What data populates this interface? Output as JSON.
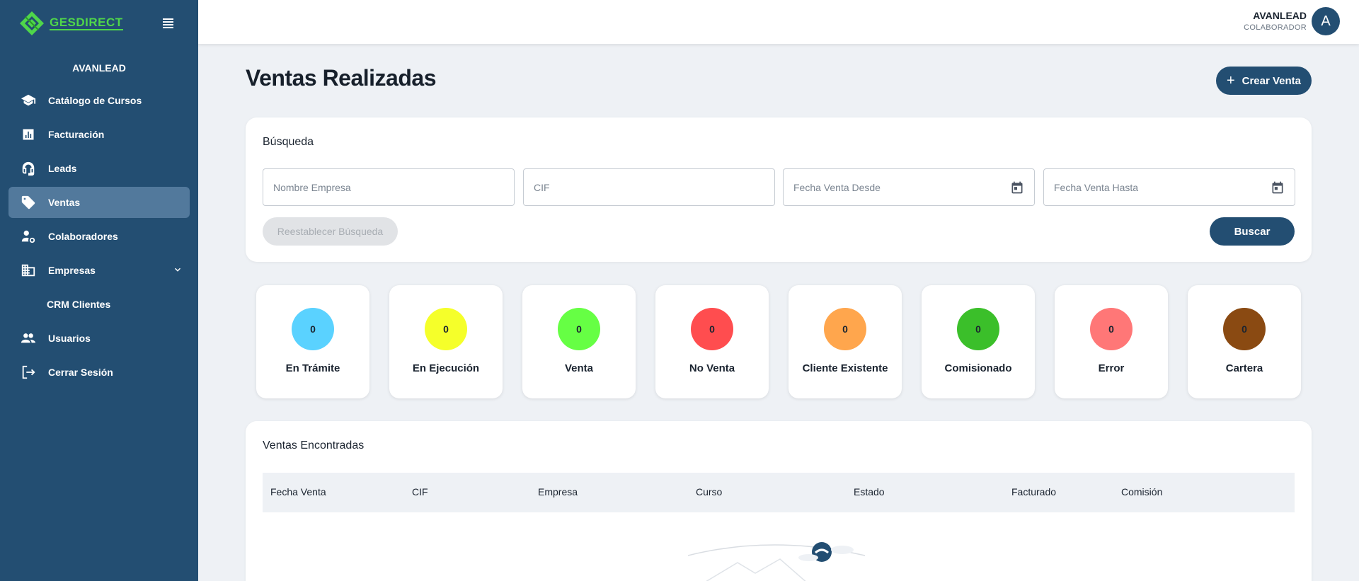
{
  "brand": {
    "name": "GESDIRECT"
  },
  "sidebar": {
    "org_name": "AVANLEAD",
    "items": [
      {
        "label": "Catálogo de Cursos",
        "icon": "graduation-cap-icon"
      },
      {
        "label": "Facturación",
        "icon": "bar-chart-icon"
      },
      {
        "label": "Leads",
        "icon": "headset-icon"
      },
      {
        "label": "Ventas",
        "icon": "tag-icon",
        "active": true
      },
      {
        "label": "Colaboradores",
        "icon": "user-gear-icon"
      },
      {
        "label": "Empresas",
        "icon": "building-icon",
        "expandable": true
      },
      {
        "label": "CRM Clientes",
        "icon": "",
        "sub": true
      },
      {
        "label": "Usuarios",
        "icon": "users-icon"
      },
      {
        "label": "Cerrar Sesión",
        "icon": "logout-icon"
      }
    ]
  },
  "topbar": {
    "user_name": "AVANLEAD",
    "user_role": "COLABORADOR",
    "avatar_initial": "A"
  },
  "main": {
    "title": "Ventas Realizadas",
    "create_button": "Crear Venta",
    "search": {
      "title": "Búsqueda",
      "fields": [
        {
          "placeholder": "Nombre Empresa"
        },
        {
          "placeholder": "CIF"
        },
        {
          "placeholder": "Fecha Venta Desde"
        },
        {
          "placeholder": "Fecha Venta Hasta"
        }
      ],
      "reset_label": "Reestablecer Búsqueda",
      "search_label": "Buscar"
    },
    "statuses": [
      {
        "label": "En Trámite",
        "count": "0",
        "color": "#5ad2ff"
      },
      {
        "label": "En Ejecución",
        "count": "0",
        "color": "#f5ff2a"
      },
      {
        "label": "Venta",
        "count": "0",
        "color": "#66ff44"
      },
      {
        "label": "No Venta",
        "count": "0",
        "color": "#ff4d4f"
      },
      {
        "label": "Cliente Existente",
        "count": "0",
        "color": "#ffa64d"
      },
      {
        "label": "Comisionado",
        "count": "0",
        "color": "#3bbf2a"
      },
      {
        "label": "Error",
        "count": "0",
        "color": "#ff7777"
      },
      {
        "label": "Cartera",
        "count": "0",
        "color": "#8a4a12"
      }
    ],
    "results": {
      "title": "Ventas Encontradas",
      "columns": [
        "Fecha Venta",
        "CIF",
        "Empresa",
        "Curso",
        "Estado",
        "Facturado",
        "Comisión"
      ]
    }
  },
  "colors": {
    "primary": "#234e72",
    "active_nav": "#52799c",
    "brand_green": "#4fd64a",
    "background": "#eef1f5"
  }
}
